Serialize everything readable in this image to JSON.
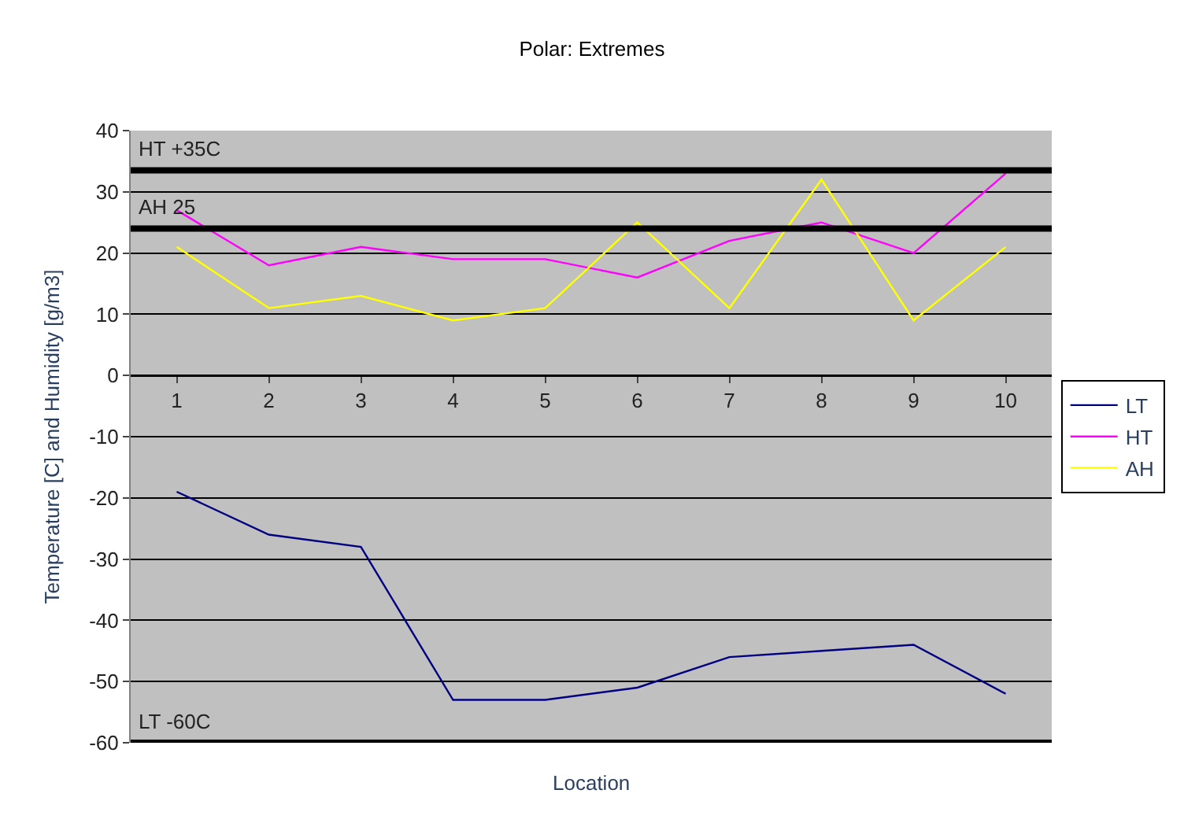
{
  "chart_data": {
    "type": "line",
    "title": "Polar: Extremes",
    "xlabel": "Location",
    "ylabel": "Temperature [C] and Humidity [g/m3]",
    "categories": [
      "1",
      "2",
      "3",
      "4",
      "5",
      "6",
      "7",
      "8",
      "9",
      "10"
    ],
    "series": [
      {
        "name": "LT",
        "color": "#000080",
        "values": [
          -19,
          -26,
          -28,
          -53,
          -53,
          -51,
          -46,
          -45,
          -44,
          -52
        ]
      },
      {
        "name": "HT",
        "color": "#ff00ff",
        "values": [
          27,
          18,
          21,
          19,
          19,
          16,
          22,
          25,
          20,
          33
        ]
      },
      {
        "name": "AH",
        "color": "#ffff00",
        "values": [
          21,
          11,
          13,
          9,
          11,
          25,
          11,
          32,
          9,
          21
        ]
      }
    ],
    "ylim": [
      -60,
      40
    ],
    "yticks": [
      -60,
      -50,
      -40,
      -30,
      -20,
      -10,
      0,
      10,
      20,
      30,
      40
    ],
    "ref_lines": [
      {
        "axis": "y",
        "value": 33.5,
        "label": "HT +35C",
        "color": "#000000"
      },
      {
        "axis": "y",
        "value": 24,
        "label": "AH 25",
        "color": "#000000"
      },
      {
        "axis": "y",
        "value": -60,
        "label": "LT -60C",
        "color": "#000000"
      }
    ],
    "grid": "y",
    "legend": "right",
    "marker": "none",
    "line_style": "solid"
  }
}
